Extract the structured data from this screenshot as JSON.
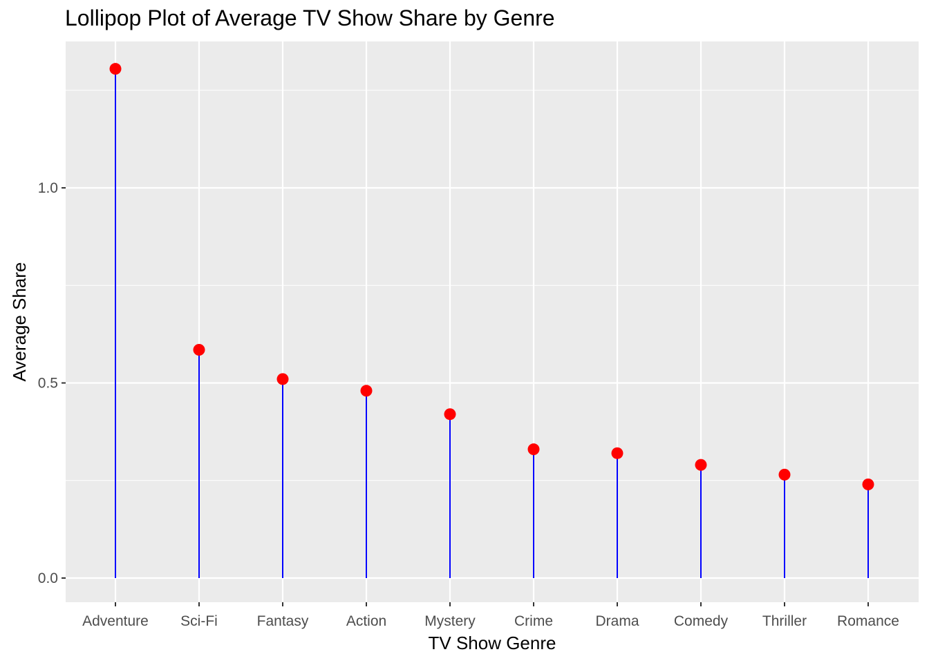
{
  "chart_data": {
    "type": "lollipop",
    "title": "Lollipop Plot of Average TV Show Share by Genre",
    "xlabel": "TV Show Genre",
    "ylabel": "Average Share",
    "categories": [
      "Adventure",
      "Sci-Fi",
      "Fantasy",
      "Action",
      "Mystery",
      "Crime",
      "Drama",
      "Comedy",
      "Thriller",
      "Romance"
    ],
    "values": [
      1.305,
      0.585,
      0.51,
      0.48,
      0.42,
      0.33,
      0.32,
      0.29,
      0.265,
      0.24
    ],
    "yticks": [
      "0.0",
      "0.5",
      "1.0"
    ],
    "ylim": [
      -0.06,
      1.37
    ],
    "grid": true,
    "colors": {
      "panel": "#ebebeb",
      "grid": "#ffffff",
      "stem": "#0000ff",
      "point": "#ff0000"
    }
  }
}
